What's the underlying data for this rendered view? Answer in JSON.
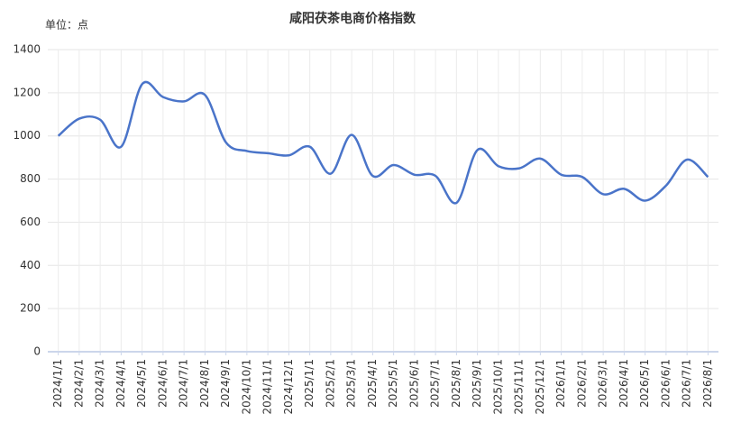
{
  "chart_data": {
    "type": "line",
    "title": "咸阳茯茶电商价格指数",
    "unit_label": "单位：点",
    "categories": [
      "2024/1/1",
      "2024/2/1",
      "2024/3/1",
      "2024/4/1",
      "2024/5/1",
      "2024/6/1",
      "2024/7/1",
      "2024/8/1",
      "2024/9/1",
      "2024/10/1",
      "2024/11/1",
      "2024/12/1",
      "2025/1/1",
      "2025/2/1",
      "2025/3/1",
      "2025/4/1",
      "2025/5/1",
      "2025/6/1",
      "2025/7/1",
      "2025/8/1",
      "2025/9/1",
      "2025/10/1",
      "2025/11/1",
      "2025/12/1",
      "2026/1/1",
      "2026/2/1",
      "2026/3/1",
      "2026/4/1",
      "2026/5/1",
      "2026/6/1",
      "2026/7/1",
      "2026/8/1"
    ],
    "values": [
      1000,
      1080,
      1075,
      950,
      1240,
      1180,
      1160,
      1190,
      970,
      930,
      920,
      910,
      950,
      825,
      1005,
      815,
      865,
      820,
      815,
      690,
      935,
      860,
      850,
      895,
      820,
      810,
      730,
      755,
      700,
      770,
      890,
      810
    ],
    "color": "#4a74c9",
    "ylim": [
      0,
      1400
    ],
    "yticks": [
      0,
      200,
      400,
      600,
      800,
      1000,
      1200,
      1400
    ],
    "grid": true
  }
}
